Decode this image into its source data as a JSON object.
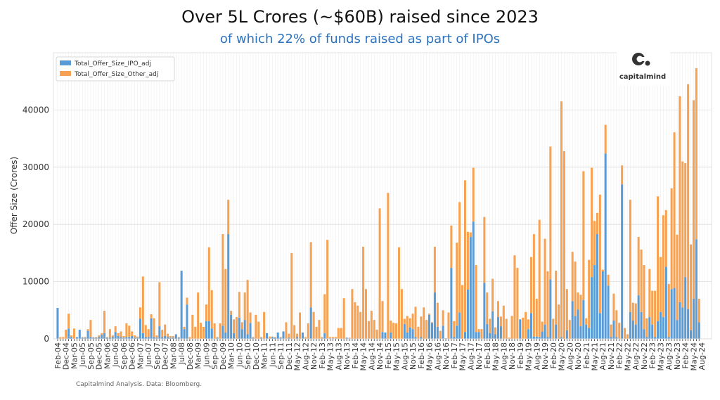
{
  "title": "Over 5L Crores (~$60B) raised since 2023",
  "subtitle": "of which 22% of funds raised as part of IPOs",
  "footer": "Capitalmind Analysis. Data: Bloomberg.",
  "logo": {
    "text": "capitalmind",
    "glyph": "c,"
  },
  "colors": {
    "ipo": "#5a9bd5",
    "other": "#f7a252",
    "subtitle": "#2b72c0"
  },
  "chart_data": {
    "type": "bar",
    "stacked": true,
    "title": "Over 5L Crores (~$60B) raised since 2023",
    "subtitle": "of which 22% of funds raised as part of IPOs",
    "xlabel": "",
    "ylabel": "Offer Size (Crores)",
    "ylim": [
      0,
      50000
    ],
    "y_ticks": [
      0,
      10000,
      20000,
      30000,
      40000
    ],
    "grid": true,
    "legend_position": "top-left",
    "x_tick_every": 3,
    "x_tick_labels": [
      "Feb-04",
      "Dec-04",
      "Mar-05",
      "Jun-05",
      "Sep-05",
      "Dec-05",
      "Mar-06",
      "Jun-06",
      "Sep-06",
      "Dec-06",
      "Mar-07",
      "Jun-07",
      "Sep-07",
      "Dec-07",
      "Mar-08",
      "Jul-08",
      "Dec-08",
      "Mar-09",
      "Jun-09",
      "Sep-09",
      "Dec-09",
      "Mar-10",
      "Jun-10",
      "Sep-10",
      "Dec-10",
      "Mar-11",
      "Jun-11",
      "Sep-11",
      "Dec-11",
      "May-12",
      "Aug-12",
      "Nov-12",
      "Feb-13",
      "May-13",
      "Aug-13",
      "Nov-13",
      "Feb-14",
      "May-14",
      "Aug-14",
      "Nov-14",
      "Feb-15",
      "May-15",
      "Aug-15",
      "Nov-15",
      "Feb-16",
      "May-16",
      "Aug-16",
      "Nov-16",
      "Feb-17",
      "May-17",
      "Aug-17",
      "Nov-17",
      "Feb-18",
      "May-18",
      "Aug-18",
      "Nov-18",
      "Feb-19",
      "May-19",
      "Aug-19",
      "Nov-19",
      "Feb-20",
      "May-20",
      "Aug-20",
      "Nov-20",
      "Feb-21",
      "May-21",
      "Aug-21",
      "Nov-21",
      "Feb-22",
      "May-22",
      "Aug-22",
      "Nov-22",
      "Feb-23",
      "May-23",
      "Aug-23",
      "Nov-23",
      "Feb-24",
      "May-24",
      "Aug-24"
    ],
    "series": [
      {
        "name": "Total_Offer_Size_IPO_adj",
        "values": [
          5400,
          0,
          0,
          0,
          1800,
          300,
          0,
          300,
          1600,
          200,
          200,
          1400,
          300,
          200,
          200,
          300,
          700,
          1000,
          200,
          200,
          300,
          1200,
          500,
          300,
          200,
          300,
          300,
          500,
          200,
          200,
          3500,
          1000,
          300,
          300,
          3600,
          300,
          200,
          2200,
          300,
          500,
          300,
          200,
          200,
          800,
          200,
          11900,
          1700,
          6000,
          0,
          0,
          0,
          0,
          0,
          0,
          3100,
          3100,
          1800,
          0,
          200,
          0,
          2300,
          1100,
          18300,
          4200,
          1000,
          0,
          3700,
          1700,
          3300,
          800,
          2800,
          200,
          0,
          0,
          200,
          0,
          1000,
          100,
          300,
          200,
          1100,
          200,
          1300,
          0,
          200,
          0,
          0,
          300,
          0,
          1100,
          100,
          0,
          5500,
          0,
          0,
          0,
          100,
          1000,
          0,
          100,
          100,
          100,
          0,
          0,
          0,
          200,
          100,
          0,
          0,
          0,
          0,
          0,
          0,
          0,
          0,
          0,
          0,
          0,
          1200,
          1100,
          0,
          1100,
          0,
          0,
          0,
          0,
          2600,
          1100,
          2000,
          1700,
          300,
          0,
          300,
          0,
          0,
          4200,
          2800,
          8100,
          2100,
          0,
          2300,
          100,
          0,
          12400,
          300,
          2300,
          4600,
          0,
          1200,
          8600,
          17800,
          20500,
          1200,
          1200,
          0,
          9800,
          2600,
          1000,
          4800,
          800,
          3800,
          2200,
          0,
          0,
          0,
          0,
          0,
          0,
          3400,
          0,
          0,
          1700,
          4500,
          400,
          400,
          300,
          1300,
          2500,
          300,
          10400,
          0,
          2500,
          0,
          300,
          0,
          1500,
          0,
          6600,
          4000,
          5100,
          2200,
          6800,
          2500,
          1900,
          10800,
          12900,
          18300,
          4500,
          11800,
          32400,
          9300,
          300,
          3200,
          300,
          0,
          27000,
          0,
          0,
          4700,
          3200,
          2500,
          7600,
          4700,
          1700,
          300,
          3800,
          2500,
          300,
          3100,
          4700,
          3800,
          12600,
          300,
          8700,
          8900,
          3300,
          6400,
          5500,
          10800,
          5200,
          1500,
          7000,
          17400,
          2900
        ]
      },
      {
        "name": "Total_Offer_Size_Other_adj",
        "values": [
          0,
          300,
          300,
          1600,
          2600,
          300,
          1800,
          0,
          0,
          100,
          100,
          300,
          3000,
          100,
          100,
          300,
          300,
          3900,
          100,
          1500,
          300,
          1000,
          500,
          1000,
          300,
          2400,
          2000,
          800,
          400,
          200,
          2000,
          9900,
          2100,
          1400,
          700,
          3300,
          400,
          7700,
          1300,
          2000,
          600,
          300,
          300,
          0,
          100,
          0,
          400,
          1200,
          300,
          4200,
          2100,
          8100,
          2800,
          2100,
          2900,
          12900,
          6700,
          2700,
          100,
          2700,
          16000,
          11100,
          6000,
          700,
          2400,
          3800,
          4500,
          1200,
          4800,
          9500,
          1800,
          100,
          4200,
          3000,
          100,
          4700,
          0,
          300,
          100,
          100,
          0,
          100,
          0,
          2900,
          700,
          15000,
          2400,
          600,
          4600,
          0,
          200,
          2700,
          11400,
          4700,
          2100,
          3300,
          200,
          6800,
          17300,
          200,
          200,
          200,
          1900,
          1900,
          7100,
          0,
          100,
          8700,
          6400,
          5800,
          4700,
          16100,
          8700,
          3100,
          4900,
          3300,
          1600,
          22800,
          5400,
          0,
          25500,
          2100,
          2800,
          2700,
          16000,
          8700,
          900,
          2900,
          1600,
          2700,
          5300,
          2100,
          3600,
          5500,
          3300,
          200,
          100,
          8000,
          4200,
          1400,
          2700,
          0,
          4600,
          7400,
          2800,
          14500,
          19300,
          9400,
          26500,
          10100,
          800,
          9400,
          11700,
          500,
          1700,
          11500,
          5500,
          2500,
          5700,
          1200,
          2800,
          1700,
          5800,
          3500,
          200,
          4000,
          14600,
          12400,
          0,
          3700,
          4700,
          1700,
          9800,
          17900,
          6600,
          20500,
          1700,
          15000,
          11500,
          23200,
          3500,
          9400,
          6000,
          41200,
          32800,
          7200,
          3300,
          8600,
          9500,
          3000,
          5500,
          22500,
          1100,
          11900,
          19100,
          7700,
          3700,
          20700,
          300,
          5000,
          1900,
          2200,
          4700,
          4700,
          2800,
          3300,
          1900,
          800,
          19600,
          3100,
          3700,
          10200,
          10900,
          11200,
          3300,
          8400,
          5900,
          8100,
          21800,
          9600,
          17800,
          9900,
          9300,
          17600,
          27200,
          14900,
          36000,
          25500,
          19900,
          39300,
          15000,
          34700,
          29900,
          4100
        ]
      }
    ]
  }
}
